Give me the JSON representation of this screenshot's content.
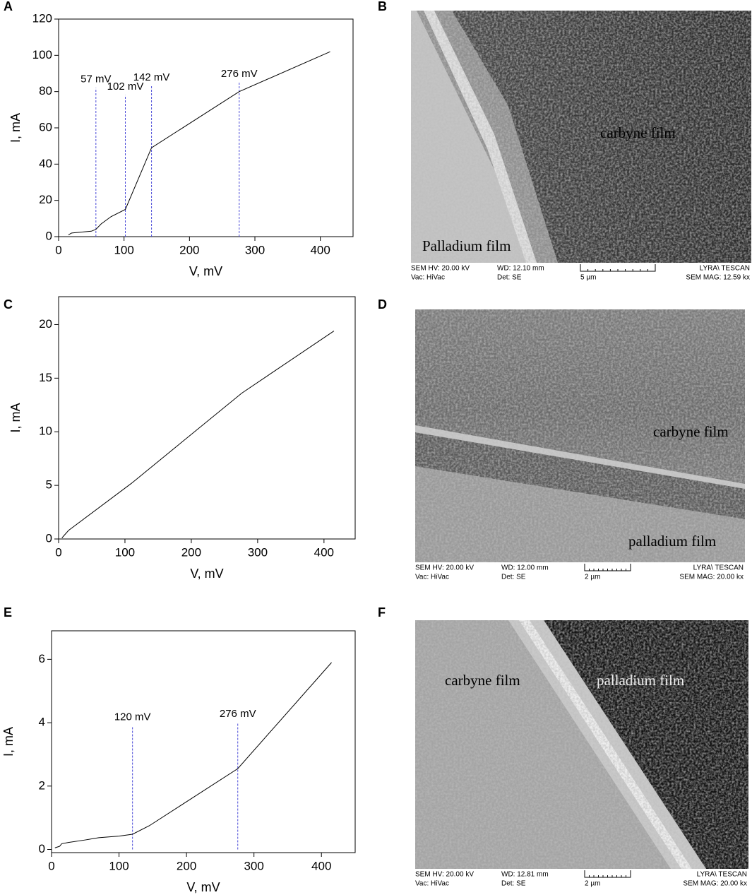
{
  "chart_data": [
    {
      "type": "line",
      "label": "A",
      "xlabel": "V, mV",
      "ylabel": "I, mA",
      "xlim": [
        0,
        450
      ],
      "ylim": [
        0,
        120
      ],
      "xticks": [
        0,
        100,
        200,
        300,
        400
      ],
      "yticks": [
        0,
        20,
        40,
        60,
        80,
        100,
        120
      ],
      "color": "#000000",
      "annotation_color": "#4a4ad8",
      "x": [
        15,
        20,
        50,
        57,
        65,
        80,
        102,
        142,
        276,
        415
      ],
      "values": [
        1,
        2,
        3,
        4,
        7,
        11,
        15,
        49,
        80,
        102
      ],
      "annotations": [
        {
          "x": 57,
          "y": 82,
          "label": "57 mV"
        },
        {
          "x": 102,
          "y": 78,
          "label": "102 mV"
        },
        {
          "x": 142,
          "y": 83,
          "label": "142 mV"
        },
        {
          "x": 276,
          "y": 85,
          "label": "276 mV"
        }
      ]
    },
    {
      "type": "line",
      "label": "C",
      "xlabel": "V, mV",
      "ylabel": "I, mA",
      "xlim": [
        0,
        447
      ],
      "ylim": [
        0,
        22.6
      ],
      "xticks": [
        0,
        100,
        200,
        300,
        400
      ],
      "yticks": [
        0,
        5,
        10,
        15,
        20
      ],
      "color": "#000000",
      "x": [
        5,
        15,
        110,
        276,
        415
      ],
      "values": [
        0.1,
        0.8,
        5.2,
        13.6,
        19.4
      ]
    },
    {
      "type": "line",
      "label": "E",
      "xlabel": "V, mV",
      "ylabel": "I, mA",
      "xlim": [
        0,
        450
      ],
      "ylim": [
        -0.1,
        6.9
      ],
      "xticks": [
        0,
        100,
        200,
        300,
        400
      ],
      "yticks": [
        0,
        2,
        4,
        6
      ],
      "color": "#000000",
      "annotation_color": "#4a4ad8",
      "x": [
        5,
        12,
        15,
        25,
        50,
        70,
        100,
        120,
        145,
        276,
        415
      ],
      "values": [
        0.05,
        0.1,
        0.18,
        0.22,
        0.3,
        0.37,
        0.42,
        0.48,
        0.75,
        2.55,
        5.9
      ],
      "annotations": [
        {
          "x": 120,
          "y": 3.9,
          "label": "120 mV"
        },
        {
          "x": 276,
          "y": 4.0,
          "label": "276 mV"
        }
      ]
    }
  ],
  "images": [
    {
      "label": "B",
      "annotations": [
        "carbyne film",
        "Palladium film"
      ],
      "info": [
        "SEM HV: 20.00 kV",
        "Vac: HiVac",
        "WD: 12.10 mm",
        "Det: SE",
        "5 µm",
        "LYRA\\ TESCAN",
        "SEM MAG: 12.59 kx"
      ]
    },
    {
      "label": "D",
      "annotations": [
        "carbyne film",
        "palladium film"
      ],
      "info": [
        "SEM HV: 20.00 kV",
        "Vac: HiVac",
        "WD: 12.00 mm",
        "Det: SE",
        "2 µm",
        "LYRA\\ TESCAN",
        "SEM MAG: 20.00 kx"
      ]
    },
    {
      "label": "F",
      "annotations": [
        "carbyne film",
        "palladium film"
      ],
      "info": [
        "SEM HV: 20.00 kV",
        "Vac: HiVac",
        "WD: 12.81 mm",
        "Det: SE",
        "2 µm",
        "LYRA\\ TESCAN",
        "SEM MAG: 20.00 kx"
      ]
    }
  ]
}
